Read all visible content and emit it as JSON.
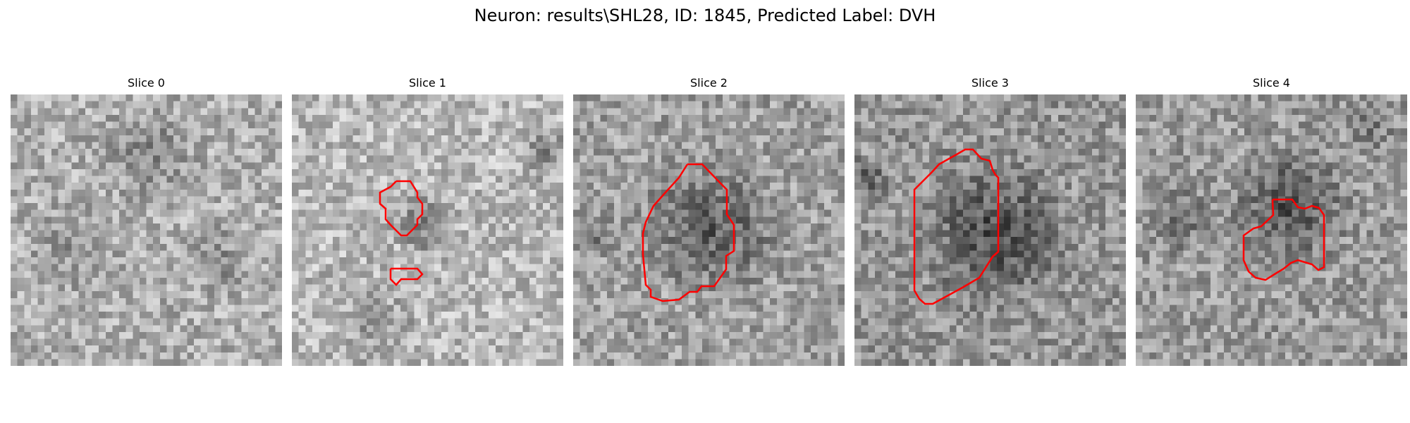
{
  "figure": {
    "title": "Neuron: results\\SHL28, ID: 1845, Predicted Label: DVH"
  },
  "contour_color": "#ff0000",
  "slices": [
    {
      "title": "Slice 0",
      "has_contour": false
    },
    {
      "title": "Slice 1",
      "has_contour": true
    },
    {
      "title": "Slice 2",
      "has_contour": true
    },
    {
      "title": "Slice 3",
      "has_contour": true
    },
    {
      "title": "Slice 4",
      "has_contour": true
    }
  ]
}
